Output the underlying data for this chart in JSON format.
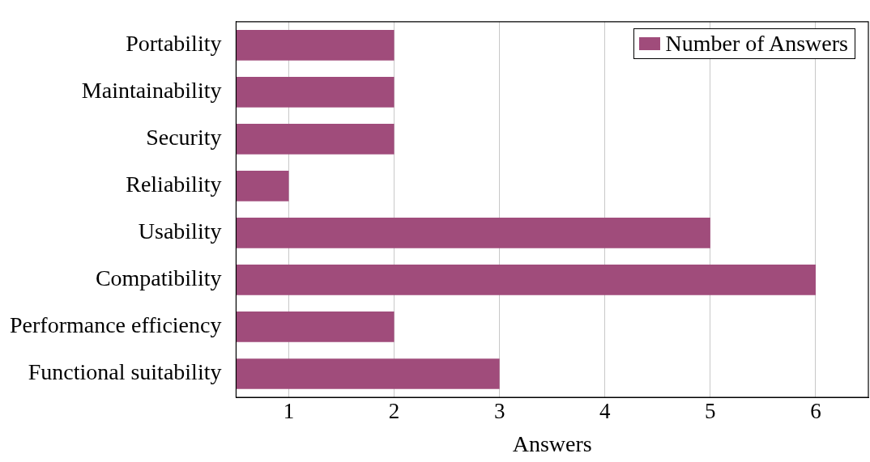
{
  "chart_data": {
    "type": "bar",
    "orientation": "horizontal",
    "xlabel": "Answers",
    "categories": [
      "Portability",
      "Maintainability",
      "Security",
      "Reliability",
      "Usability",
      "Compatibility",
      "Performance efficiency",
      "Functional suitability"
    ],
    "series": [
      {
        "name": "Number of Answers",
        "color": "#a04c7b",
        "values": [
          2,
          2,
          2,
          1,
          5,
          6,
          2,
          3
        ]
      }
    ],
    "xlim": [
      0.5,
      6.5
    ],
    "xticks": [
      1,
      2,
      3,
      4,
      5,
      6
    ],
    "grid": "x",
    "legend": "top right"
  }
}
